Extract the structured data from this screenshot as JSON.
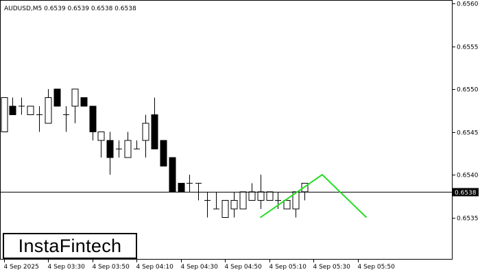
{
  "header_text": "AUDUSD,M5  0.6539 0.6539 0.6538 0.6538",
  "logo_text": "InstaFintech",
  "chart_data": {
    "type": "candlestick",
    "symbol": "AUDUSD",
    "timeframe": "M5",
    "ylim": [
      0.653,
      0.656
    ],
    "y_ticks": [
      "0.6560",
      "0.6555",
      "0.6550",
      "0.6545",
      "0.6540",
      "0.6535"
    ],
    "x_ticks": [
      {
        "label": "4 Sep 2025",
        "bar": 0
      },
      {
        "label": "4 Sep 03:30",
        "bar": 5
      },
      {
        "label": "4 Sep 03:50",
        "bar": 10
      },
      {
        "label": "4 Sep 04:10",
        "bar": 15
      },
      {
        "label": "4 Sep 04:30",
        "bar": 20
      },
      {
        "label": "4 Sep 04:50",
        "bar": 25
      },
      {
        "label": "4 Sep 05:10",
        "bar": 30
      },
      {
        "label": "4 Sep 05:30",
        "bar": 35
      },
      {
        "label": "4 Sep 05:50",
        "bar": 40
      }
    ],
    "current_price": "0.6538",
    "current_price_value": 0.6538,
    "bar_count": 43,
    "candles": [
      {
        "o": 0.6545,
        "h": 0.6549,
        "l": 0.6545,
        "c": 0.6549
      },
      {
        "o": 0.6548,
        "h": 0.6549,
        "l": 0.6547,
        "c": 0.6547
      },
      {
        "o": 0.6548,
        "h": 0.6549,
        "l": 0.6547,
        "c": 0.6548
      },
      {
        "o": 0.6547,
        "h": 0.6548,
        "l": 0.6547,
        "c": 0.6548
      },
      {
        "o": 0.6547,
        "h": 0.6548,
        "l": 0.6545,
        "c": 0.6547
      },
      {
        "o": 0.6546,
        "h": 0.655,
        "l": 0.6546,
        "c": 0.6549
      },
      {
        "o": 0.655,
        "h": 0.655,
        "l": 0.6548,
        "c": 0.6548
      },
      {
        "o": 0.6547,
        "h": 0.6548,
        "l": 0.6545,
        "c": 0.6547
      },
      {
        "o": 0.6548,
        "h": 0.655,
        "l": 0.6546,
        "c": 0.655
      },
      {
        "o": 0.6549,
        "h": 0.6549,
        "l": 0.6548,
        "c": 0.6548
      },
      {
        "o": 0.6548,
        "h": 0.6548,
        "l": 0.6544,
        "c": 0.6545
      },
      {
        "o": 0.6544,
        "h": 0.6545,
        "l": 0.6542,
        "c": 0.6545
      },
      {
        "o": 0.6544,
        "h": 0.6545,
        "l": 0.654,
        "c": 0.6542
      },
      {
        "o": 0.6543,
        "h": 0.6544,
        "l": 0.6542,
        "c": 0.6543
      },
      {
        "o": 0.6542,
        "h": 0.6545,
        "l": 0.6542,
        "c": 0.6544
      },
      {
        "o": 0.6543,
        "h": 0.6544,
        "l": 0.6543,
        "c": 0.6543
      },
      {
        "o": 0.6544,
        "h": 0.6547,
        "l": 0.6542,
        "c": 0.6546
      },
      {
        "o": 0.6547,
        "h": 0.6549,
        "l": 0.6543,
        "c": 0.6543
      },
      {
        "o": 0.6544,
        "h": 0.6544,
        "l": 0.6541,
        "c": 0.6541
      },
      {
        "o": 0.6542,
        "h": 0.6542,
        "l": 0.6538,
        "c": 0.6538
      },
      {
        "o": 0.6539,
        "h": 0.6539,
        "l": 0.6538,
        "c": 0.6538
      },
      {
        "o": 0.6539,
        "h": 0.654,
        "l": 0.6538,
        "c": 0.6539
      },
      {
        "o": 0.6539,
        "h": 0.6539,
        "l": 0.6537,
        "c": 0.6539
      },
      {
        "o": 0.6537,
        "h": 0.6538,
        "l": 0.6535,
        "c": 0.6537
      },
      {
        "o": 0.6536,
        "h": 0.6538,
        "l": 0.6536,
        "c": 0.6536
      },
      {
        "o": 0.6535,
        "h": 0.6537,
        "l": 0.6535,
        "c": 0.6537
      },
      {
        "o": 0.6536,
        "h": 0.6538,
        "l": 0.6535,
        "c": 0.6537
      },
      {
        "o": 0.6536,
        "h": 0.6538,
        "l": 0.6536,
        "c": 0.6538
      },
      {
        "o": 0.6537,
        "h": 0.6539,
        "l": 0.6537,
        "c": 0.6538
      },
      {
        "o": 0.6537,
        "h": 0.654,
        "l": 0.6536,
        "c": 0.6538
      },
      {
        "o": 0.6537,
        "h": 0.6538,
        "l": 0.6537,
        "c": 0.6538
      },
      {
        "o": 0.6537,
        "h": 0.6538,
        "l": 0.6536,
        "c": 0.6537
      },
      {
        "o": 0.6536,
        "h": 0.6537,
        "l": 0.6536,
        "c": 0.6537
      },
      {
        "o": 0.6536,
        "h": 0.6538,
        "l": 0.6535,
        "c": 0.6538
      },
      {
        "o": 0.6538,
        "h": 0.6539,
        "l": 0.6537,
        "c": 0.6539
      }
    ],
    "candle_bars": [
      0,
      1,
      2,
      3,
      4,
      5,
      6,
      7,
      8,
      9,
      10,
      11,
      12,
      13,
      14,
      15,
      16,
      17,
      18,
      19,
      20,
      21,
      22,
      23,
      24,
      25,
      26,
      27,
      28,
      29,
      30,
      31,
      32,
      33,
      34
    ],
    "pattern": {
      "color": "#22dd22",
      "points": [
        {
          "bar": 29,
          "y": 0.6535
        },
        {
          "bar": 36,
          "y": 0.654
        },
        {
          "bar": 41,
          "y": 0.6535
        }
      ]
    }
  }
}
